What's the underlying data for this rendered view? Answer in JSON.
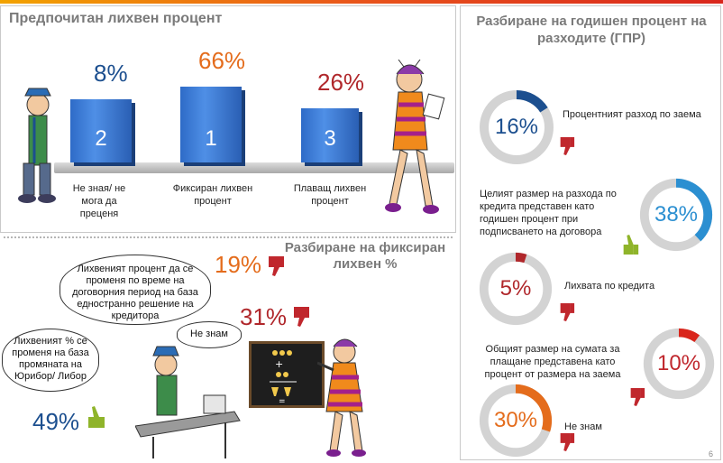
{
  "colors": {
    "blue": "#1c4f8f",
    "orange": "#e46c1c",
    "red": "#b0272b",
    "cyan": "#2b8fd1",
    "gray_ring": "#d3d3d3"
  },
  "left_top": {
    "title": "Предпочитан лихвен процент",
    "bars": [
      {
        "rank": "2",
        "pct": "8%",
        "label": "Не зная/ не мога да преценя"
      },
      {
        "rank": "1",
        "pct": "66%",
        "label": "Фиксиран лихвен процент"
      },
      {
        "rank": "3",
        "pct": "26%",
        "label": "Плаващ лихвен процент"
      }
    ]
  },
  "left_bottom": {
    "title": "Разбиране на фиксиран лихвен %",
    "cloud1": "Лихвеният процент да се променя по време на договорния период на база едностранно решение на кредитора",
    "cloud1_pct": "19%",
    "cloud2": "Лихвеният % се променя на база промяната на Юрибор/ Либор",
    "cloud2_pct": "49%",
    "cloud3": "Не знам",
    "cloud3_pct": "31%",
    "icons": {
      "up": "thumb-up-icon",
      "down": "thumb-down-icon"
    }
  },
  "right": {
    "title": "Разбиране на годишен процент на разходите (ГПР)",
    "items": [
      {
        "pct": "16%",
        "value": 16,
        "label": "Процентният разход по заема",
        "icon": "thumb-down-icon"
      },
      {
        "pct": "38%",
        "value": 38,
        "label": "Целият размер на разхода по кредита представен като годишен процент при подписването на договора",
        "icon": "thumb-up-icon"
      },
      {
        "pct": "5%",
        "value": 5,
        "label": "Лихвата по кредита",
        "icon": "thumb-down-icon"
      },
      {
        "pct": "10%",
        "value": 10,
        "label": "Общият размер на сумата за плащане представена като процент от размера на заема",
        "icon": "thumb-down-icon"
      },
      {
        "pct": "30%",
        "value": 30,
        "label": "Не знам",
        "icon": "thumb-down-icon"
      }
    ]
  },
  "page_number": "6"
}
